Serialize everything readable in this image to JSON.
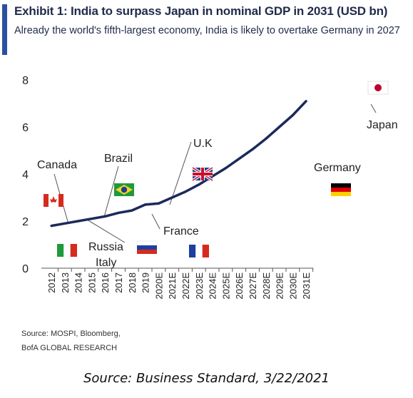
{
  "header": {
    "title": "Exhibit 1: India to surpass Japan in nominal GDP in 2031 (USD bn)",
    "subtitle": "Already the world's fifth-largest economy, India is likely to overtake Germany in 2027"
  },
  "source_lines": [
    "Source: MOSPI, Bloomberg,",
    "BofA GLOBAL RESEARCH"
  ],
  "footer": "Source: Business Standard, 3/22/2021",
  "colors": {
    "line": "#1b2a5c",
    "accent": "#2b50a0",
    "axis": "#555555"
  },
  "chart_data": {
    "type": "line",
    "title": "",
    "xlabel": "",
    "ylabel": "",
    "categories": [
      "2012",
      "2013",
      "2014",
      "2015",
      "2016",
      "2017",
      "2018",
      "2019",
      "2020E",
      "2021E",
      "2022E",
      "2023E",
      "2024E",
      "2025E",
      "2026E",
      "2027E",
      "2028E",
      "2029E",
      "2030E",
      "2031E"
    ],
    "series": [
      {
        "values": [
          1.8,
          1.9,
          2.0,
          2.1,
          2.2,
          2.35,
          2.45,
          2.7,
          2.75,
          3.0,
          3.25,
          3.55,
          3.9,
          4.25,
          4.65,
          5.05,
          5.5,
          6.0,
          6.5,
          7.1
        ]
      }
    ],
    "ylim": [
      0,
      8
    ],
    "yticks": [
      0,
      2,
      4,
      6,
      8
    ],
    "grid": false,
    "annotations": [
      {
        "label": "Canada",
        "flag": "canada-flag-icon"
      },
      {
        "label": "Brazil",
        "flag": "brazil-flag-icon"
      },
      {
        "label": "U.K",
        "flag": "uk-flag-icon"
      },
      {
        "label": "Germany",
        "flag": "germany-flag-icon"
      },
      {
        "label": "Japan",
        "flag": "japan-flag-icon"
      },
      {
        "label": "Russia",
        "flag": "russia-flag-icon"
      },
      {
        "label": "Italy",
        "flag": "italy-flag-icon"
      },
      {
        "label": "France",
        "flag": "france-flag-icon"
      }
    ]
  }
}
